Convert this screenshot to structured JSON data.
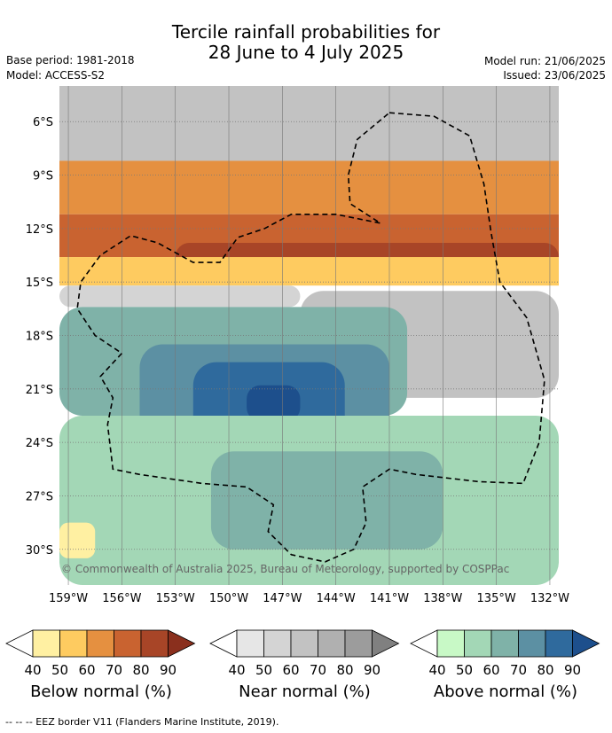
{
  "header": {
    "title_line1": "Tercile rainfall probabilities for",
    "title_line2": "28 June to 4 July 2025",
    "base_period": "Base period: 1981-2018",
    "model": "Model: ACCESS-S2",
    "model_run": "Model run: 21/06/2025",
    "issued": "Issued: 23/06/2025"
  },
  "chart_data": {
    "type": "heatmap",
    "xlim": [
      -159.5,
      -131.5
    ],
    "ylim": [
      -32,
      -4
    ],
    "x_ticks": [
      {
        "value": -159,
        "label": "159°W"
      },
      {
        "value": -156,
        "label": "156°W"
      },
      {
        "value": -153,
        "label": "153°W"
      },
      {
        "value": -150,
        "label": "150°W"
      },
      {
        "value": -147,
        "label": "147°W"
      },
      {
        "value": -144,
        "label": "144°W"
      },
      {
        "value": -141,
        "label": "141°W"
      },
      {
        "value": -138,
        "label": "138°W"
      },
      {
        "value": -135,
        "label": "135°W"
      },
      {
        "value": -132,
        "label": "132°W"
      }
    ],
    "y_ticks": [
      {
        "value": -6,
        "label": "6°S"
      },
      {
        "value": -9,
        "label": "9°S"
      },
      {
        "value": -12,
        "label": "12°S"
      },
      {
        "value": -15,
        "label": "15°S"
      },
      {
        "value": -18,
        "label": "18°S"
      },
      {
        "value": -21,
        "label": "21°S"
      },
      {
        "value": -24,
        "label": "24°S"
      },
      {
        "value": -27,
        "label": "27°S"
      },
      {
        "value": -30,
        "label": "30°S"
      }
    ],
    "grid": true,
    "categories": [
      {
        "name": "below",
        "colors": [
          "#fff0a2",
          "#fecb60",
          "#e59040",
          "#c96330",
          "#a84527",
          "#8a2f1d"
        ]
      },
      {
        "name": "near",
        "colors": [
          "#e6e6e6",
          "#d4d4d4",
          "#c2c2c2",
          "#b0b0b0",
          "#9c9c9c",
          "#808080"
        ]
      },
      {
        "name": "above",
        "colors": [
          "#c8f9c6",
          "#a3d7b6",
          "#7fb2a8",
          "#5c90a3",
          "#2f6a9d",
          "#1d4f8c"
        ]
      }
    ],
    "zones": [
      {
        "category": "near",
        "level": 2,
        "lat_top": -4,
        "lat_bottom": -8.2
      },
      {
        "category": "below",
        "level": 2,
        "lat_top": -8.2,
        "lat_bottom": -11.2
      },
      {
        "category": "below",
        "level": 3,
        "lat_top": -11.2,
        "lat_bottom": -13.6
      },
      {
        "category": "below",
        "level": 4,
        "lat_top": -12.8,
        "lat_bottom": -14.4,
        "lon_left": -153,
        "lon_right": -131.5
      },
      {
        "category": "below",
        "level": 1,
        "lat_top": -13.6,
        "lat_bottom": -15.2
      },
      {
        "category": "near",
        "level": 1,
        "lat_top": -15.2,
        "lat_bottom": -16.4,
        "lon_left": -159.5,
        "lon_right": -146
      },
      {
        "category": "near",
        "level": 2,
        "lat_top": -15.5,
        "lat_bottom": -21.5,
        "lon_left": -146,
        "lon_right": -131.5
      },
      {
        "category": "above",
        "level": 2,
        "lat_top": -16.4,
        "lat_bottom": -22.5,
        "lon_left": -159.5,
        "lon_right": -140
      },
      {
        "category": "above",
        "level": 3,
        "lat_top": -18.5,
        "lat_bottom": -25,
        "lon_left": -155,
        "lon_right": -141
      },
      {
        "category": "above",
        "level": 4,
        "lat_top": -19.5,
        "lat_bottom": -24,
        "lon_left": -152,
        "lon_right": -143.5
      },
      {
        "category": "above",
        "level": 5,
        "lat_top": -20.8,
        "lat_bottom": -22.8,
        "lon_left": -149,
        "lon_right": -146
      },
      {
        "category": "above",
        "level": 1,
        "lat_top": -22.5,
        "lat_bottom": -32,
        "lon_left": -159.5,
        "lon_right": -131.5
      },
      {
        "category": "above",
        "level": 2,
        "lat_top": -24.5,
        "lat_bottom": -30,
        "lon_left": -151,
        "lon_right": -138
      },
      {
        "category": "below",
        "level": 0,
        "lat_top": -28.5,
        "lat_bottom": -30.5,
        "lon_left": -159.5,
        "lon_right": -157.5
      }
    ],
    "eez_border": [
      [
        -141,
        -5.5
      ],
      [
        -138.5,
        -5.7
      ],
      [
        -136.5,
        -6.8
      ],
      [
        -135.7,
        -9.5
      ],
      [
        -135.3,
        -12.2
      ],
      [
        -134.8,
        -15
      ],
      [
        -133.3,
        -17
      ],
      [
        -132.3,
        -20.5
      ],
      [
        -132.6,
        -24
      ],
      [
        -133.5,
        -26.3
      ],
      [
        -136,
        -26.2
      ],
      [
        -139.5,
        -25.8
      ],
      [
        -141,
        -25.5
      ],
      [
        -142.5,
        -26.5
      ],
      [
        -142.3,
        -28.5
      ],
      [
        -143,
        -30
      ],
      [
        -144.6,
        -30.7
      ],
      [
        -146.5,
        -30.3
      ],
      [
        -147.8,
        -29
      ],
      [
        -147.5,
        -27.5
      ],
      [
        -149,
        -26.5
      ],
      [
        -151.5,
        -26.3
      ],
      [
        -155,
        -25.8
      ],
      [
        -156.5,
        -25.5
      ],
      [
        -156.8,
        -23
      ],
      [
        -156.5,
        -21.5
      ],
      [
        -157.2,
        -20.3
      ],
      [
        -156,
        -19
      ],
      [
        -157.5,
        -18
      ],
      [
        -158.5,
        -16.5
      ],
      [
        -158.3,
        -15
      ],
      [
        -157.2,
        -13.5
      ],
      [
        -155.5,
        -12.4
      ],
      [
        -154,
        -12.8
      ],
      [
        -152,
        -13.9
      ],
      [
        -150.5,
        -13.9
      ],
      [
        -149.5,
        -12.5
      ],
      [
        -148,
        -12
      ],
      [
        -146.5,
        -11.2
      ],
      [
        -144,
        -11.2
      ],
      [
        -141.5,
        -11.7
      ],
      [
        -143.2,
        -10.6
      ],
      [
        -143.3,
        -9
      ],
      [
        -142.8,
        -7
      ],
      [
        -141,
        -5.5
      ]
    ],
    "copyright": "© Commonwealth of Australia 2025, Bureau of Meteorology, supported by COSPPac"
  },
  "legend": {
    "tick_labels": [
      "40",
      "50",
      "60",
      "70",
      "80",
      "90"
    ],
    "groups": [
      {
        "category": "below",
        "label": "Below normal (%)"
      },
      {
        "category": "near",
        "label": "Near normal (%)"
      },
      {
        "category": "above",
        "label": "Above normal (%)"
      }
    ]
  },
  "footer": {
    "eez_note": "-- -- -- EEZ border V11 (Flanders Marine Institute, 2019)."
  }
}
